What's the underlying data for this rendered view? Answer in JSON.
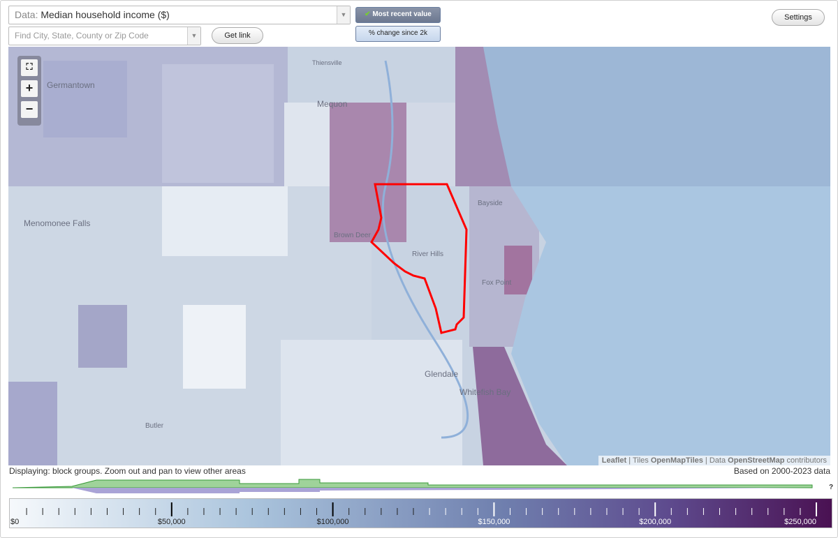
{
  "controls": {
    "data_label": "Data:",
    "data_value": "Median household income ($)",
    "search_placeholder": "Find City, State, County or Zip Code",
    "get_link": "Get link",
    "most_recent": "Most recent value",
    "change_since": "% change since 2k",
    "settings": "Settings"
  },
  "map": {
    "zoom_in": "+",
    "zoom_out": "−",
    "labels": [
      "Thiensville",
      "Germantown",
      "Mequon",
      "Bayside",
      "Menomonee Falls",
      "Brown Deer",
      "River Hills",
      "Fox Point",
      "Glendale",
      "Whitefish Bay",
      "Butler"
    ],
    "attribution": {
      "leaflet": "Leaflet",
      "tiles": "Tiles",
      "tiles_source": "OpenMapTiles",
      "data": "Data",
      "data_source": "OpenStreetMap",
      "contributors": "contributors"
    }
  },
  "status": {
    "left": "Displaying: block groups. Zoom out and pan to view other areas",
    "right": "Based on 2000-2023 data"
  },
  "legend": {
    "help": "?",
    "ticks": [
      "$0",
      "$50,000",
      "$100,000",
      "$150,000",
      "$200,000",
      "$250,000"
    ]
  }
}
